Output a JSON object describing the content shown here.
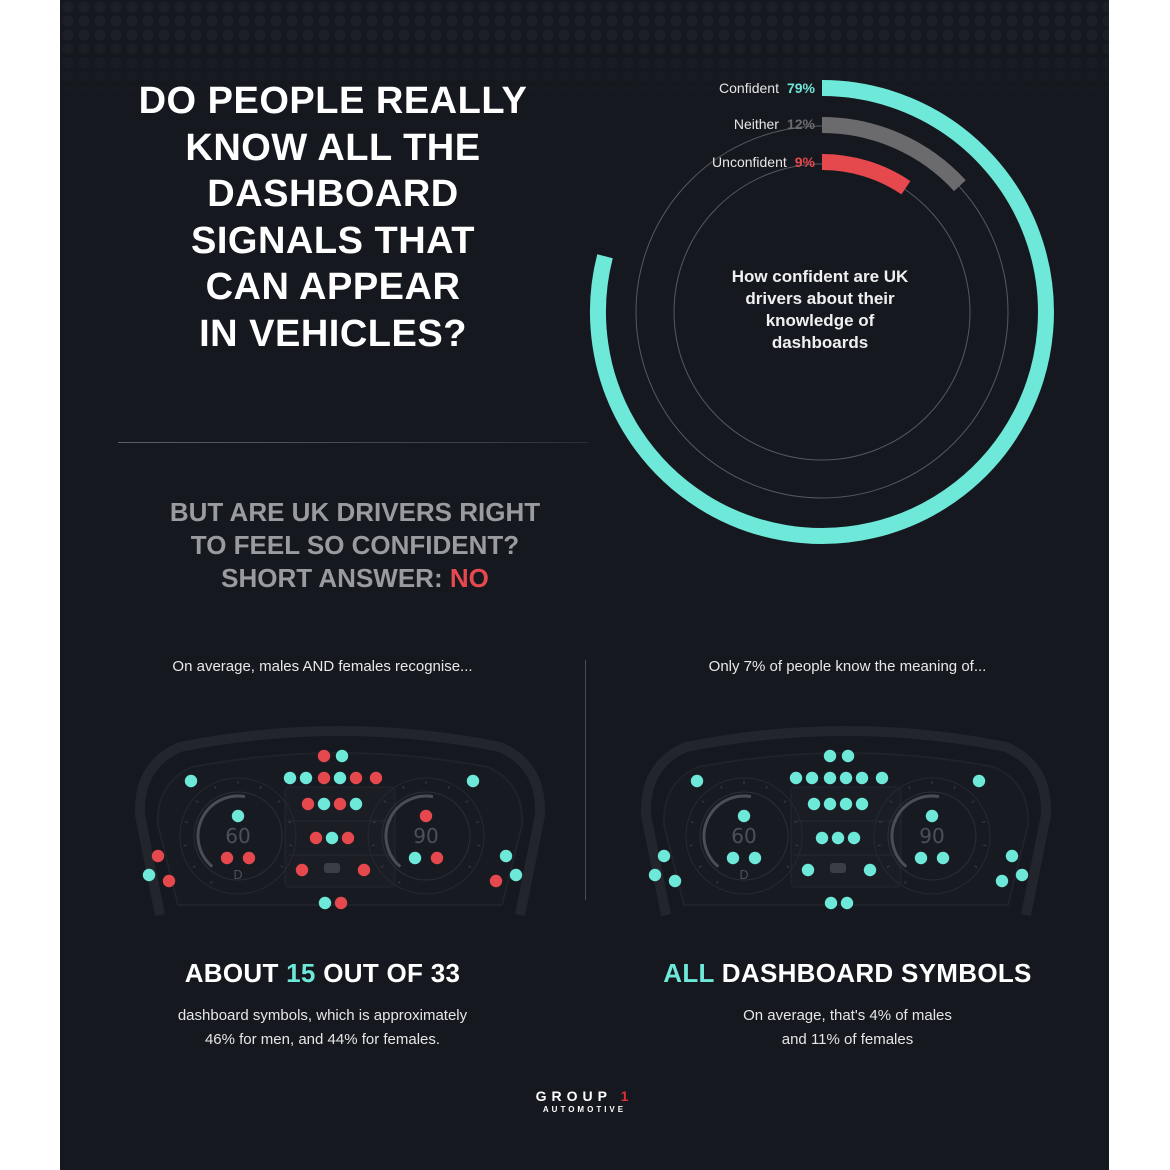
{
  "header": {
    "title_lines": [
      "DO PEOPLE REALLY",
      "KNOW ALL THE",
      "DASHBOARD",
      "SIGNALS THAT",
      "CAN APPEAR",
      "IN VEHICLES?"
    ]
  },
  "question": {
    "line1": "BUT ARE UK DRIVERS RIGHT",
    "line2": "TO FEEL SO CONFIDENT?",
    "line3_prefix": "SHORT ANSWER: ",
    "line3_answer": "NO"
  },
  "colors": {
    "background": "#16181f",
    "teal": "#6ee8d9",
    "gray": "#6b6b6e",
    "red": "#e5484d",
    "white": "#ffffff"
  },
  "chart_data": [
    {
      "type": "pie",
      "subtype": "radial-bar",
      "title": "How confident are UK drivers about their knowledge of dashboards",
      "categories": [
        "Confident",
        "Neither",
        "Unconfident"
      ],
      "values": [
        79,
        12,
        9
      ],
      "unit": "%",
      "colors": [
        "#6ee8d9",
        "#6b6b6e",
        "#e5484d"
      ]
    },
    {
      "type": "scatter",
      "title": "On average, males AND females recognise... ABOUT 15 OUT OF 33 dashboard symbols",
      "total_symbols": 33,
      "recognised": 15,
      "men_pct": 46,
      "women_pct": 44
    },
    {
      "type": "scatter",
      "title": "Only 7% of people know the meaning of... ALL DASHBOARD SYMBOLS",
      "total_symbols": 33,
      "all_known_pct": 7,
      "males_pct": 4,
      "females_pct": 11
    }
  ],
  "donut": {
    "legend": [
      {
        "label": "Confident",
        "value": "79%",
        "color": "#6ee8d9"
      },
      {
        "label": "Neither",
        "value": "12%",
        "color": "#6b6b6e"
      },
      {
        "label": "Unconfident",
        "value": "9%",
        "color": "#e5484d"
      }
    ],
    "caption": "How confident are UK drivers about their knowledge of dashboards"
  },
  "left_panel": {
    "intro": "On average, males AND females recognise...",
    "headline_prefix": "ABOUT ",
    "headline_number": "15",
    "headline_suffix": " OUT OF 33",
    "sub_line1": "dashboard symbols, which is approximately",
    "sub_line2": "46% for men, and 44% for females.",
    "gauge_left": {
      "value": "60",
      "gear": "D"
    },
    "gauge_right": {
      "value": "90"
    },
    "dots": [
      [
        204,
        51,
        "r"
      ],
      [
        222,
        51,
        "t"
      ],
      [
        170,
        73,
        "t"
      ],
      [
        186,
        73,
        "t"
      ],
      [
        204,
        73,
        "r"
      ],
      [
        220,
        73,
        "t"
      ],
      [
        236,
        73,
        "r"
      ],
      [
        256,
        73,
        "r"
      ],
      [
        188,
        99,
        "r"
      ],
      [
        204,
        99,
        "t"
      ],
      [
        220,
        99,
        "r"
      ],
      [
        236,
        99,
        "t"
      ],
      [
        196,
        133,
        "r"
      ],
      [
        212,
        133,
        "t"
      ],
      [
        228,
        133,
        "r"
      ],
      [
        182,
        165,
        "r"
      ],
      [
        244,
        165,
        "r"
      ],
      [
        205,
        198,
        "t"
      ],
      [
        221,
        198,
        "r"
      ],
      [
        118,
        111,
        "t"
      ],
      [
        107,
        153,
        "r"
      ],
      [
        129,
        153,
        "r"
      ],
      [
        306,
        111,
        "r"
      ],
      [
        295,
        153,
        "t"
      ],
      [
        317,
        153,
        "r"
      ],
      [
        71,
        76,
        "t"
      ],
      [
        38,
        151,
        "r"
      ],
      [
        29,
        170,
        "t"
      ],
      [
        49,
        176,
        "r"
      ],
      [
        353,
        76,
        "t"
      ],
      [
        386,
        151,
        "t"
      ],
      [
        396,
        170,
        "t"
      ],
      [
        376,
        176,
        "r"
      ]
    ]
  },
  "right_panel": {
    "intro": "Only 7% of people know the meaning of...",
    "headline_prefix": "ALL",
    "headline_suffix": " DASHBOARD SYMBOLS",
    "sub_line1": "On average, that's 4% of males",
    "sub_line2": "and 11% of females",
    "gauge_left": {
      "value": "60",
      "gear": "D"
    },
    "gauge_right": {
      "value": "90"
    },
    "dots": [
      [
        204,
        51,
        "t"
      ],
      [
        222,
        51,
        "t"
      ],
      [
        170,
        73,
        "t"
      ],
      [
        186,
        73,
        "t"
      ],
      [
        204,
        73,
        "t"
      ],
      [
        220,
        73,
        "t"
      ],
      [
        236,
        73,
        "t"
      ],
      [
        256,
        73,
        "t"
      ],
      [
        188,
        99,
        "t"
      ],
      [
        204,
        99,
        "t"
      ],
      [
        220,
        99,
        "t"
      ],
      [
        236,
        99,
        "t"
      ],
      [
        196,
        133,
        "t"
      ],
      [
        212,
        133,
        "t"
      ],
      [
        228,
        133,
        "t"
      ],
      [
        182,
        165,
        "t"
      ],
      [
        244,
        165,
        "t"
      ],
      [
        205,
        198,
        "t"
      ],
      [
        221,
        198,
        "t"
      ],
      [
        118,
        111,
        "t"
      ],
      [
        107,
        153,
        "t"
      ],
      [
        129,
        153,
        "t"
      ],
      [
        306,
        111,
        "t"
      ],
      [
        295,
        153,
        "t"
      ],
      [
        317,
        153,
        "t"
      ],
      [
        71,
        76,
        "t"
      ],
      [
        38,
        151,
        "t"
      ],
      [
        29,
        170,
        "t"
      ],
      [
        49,
        176,
        "t"
      ],
      [
        353,
        76,
        "t"
      ],
      [
        386,
        151,
        "t"
      ],
      [
        396,
        170,
        "t"
      ],
      [
        376,
        176,
        "t"
      ]
    ]
  },
  "footer": {
    "logo_line1": "GROUP ",
    "logo_one": "1",
    "logo_line2": "AUTOMOTIVE"
  }
}
